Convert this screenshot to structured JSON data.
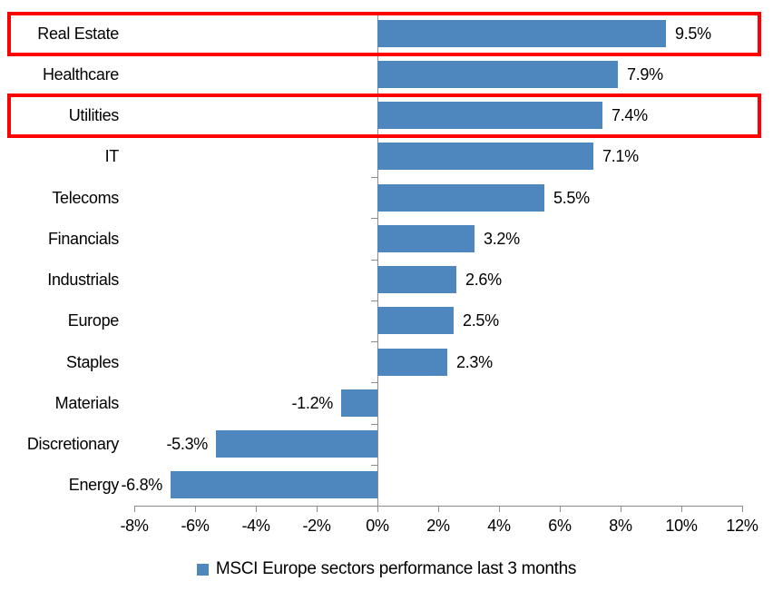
{
  "chart_data": {
    "type": "bar",
    "orientation": "horizontal",
    "categories": [
      "Real Estate",
      "Healthcare",
      "Utilities",
      "IT",
      "Telecoms",
      "Financials",
      "Industrials",
      "Europe",
      "Staples",
      "Materials",
      "Discretionary",
      "Energy"
    ],
    "values": [
      9.5,
      7.9,
      7.4,
      7.1,
      5.5,
      3.2,
      2.6,
      2.5,
      2.3,
      -1.2,
      -5.3,
      -6.8
    ],
    "data_labels": [
      "9.5%",
      "7.9%",
      "7.4%",
      "7.1%",
      "5.5%",
      "3.2%",
      "2.6%",
      "2.5%",
      "2.3%",
      "-1.2%",
      "-5.3%",
      "-6.8%"
    ],
    "x_tick_labels": [
      "-8%",
      "-6%",
      "-4%",
      "-2%",
      "0%",
      "2%",
      "4%",
      "6%",
      "8%",
      "10%",
      "12%"
    ],
    "x_min": -8,
    "x_max": 12,
    "x_step": 2,
    "xlim": [
      -8,
      12
    ],
    "title": "",
    "xlabel": "",
    "ylabel": "",
    "grid": false,
    "legend_position": "bottom",
    "legend": "MSCI Europe sectors performance last 3 months",
    "highlighted_categories": [
      "Real Estate",
      "Utilities"
    ],
    "colors": {
      "bar": "#4e86be",
      "axis": "#8c8c8c",
      "text": "#000000",
      "highlight": "#ff0000",
      "background": "#ffffff"
    }
  }
}
